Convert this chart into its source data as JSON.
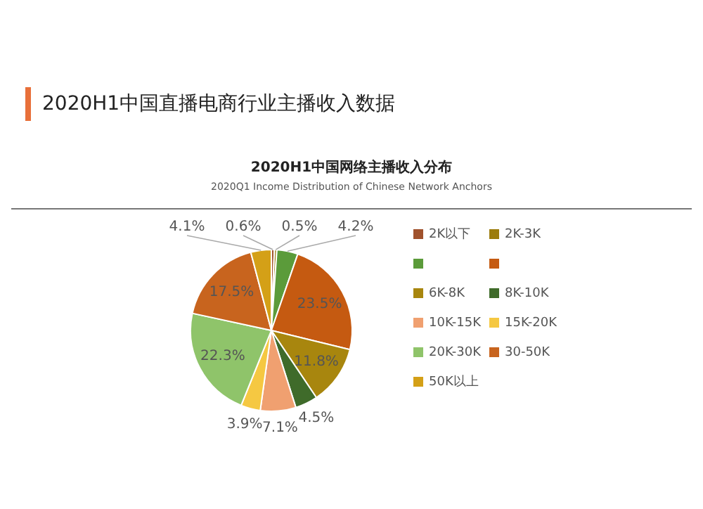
{
  "chart_data": {
    "type": "pie",
    "title": "2020H1中国直播电商行业主播收入数据",
    "subtitle": "2020H1中国网络主播收入分布",
    "annotations": [
      "2020Q1 Income Distribution of Chinese Network Anchors"
    ],
    "categories": [
      "2K以下",
      "2K-3K",
      null,
      null,
      "6K-8K",
      "8K-10K",
      "10K-15K",
      "15K-20K",
      "20K-30K",
      "30-50K",
      "50K以上"
    ],
    "values": [
      0.6,
      0.5,
      4.2,
      23.5,
      11.8,
      4.5,
      7.1,
      3.9,
      22.3,
      17.5,
      4.1
    ],
    "colors": [
      "#a0522d",
      "#9c7c0c",
      "#5b9b3a",
      "#c55a11",
      "#a8860e",
      "#3f6b2a",
      "#f0a070",
      "#f5c842",
      "#8fc46a",
      "#c8641e",
      "#d4a017"
    ],
    "value_labels": [
      "0.6%",
      "0.5%",
      "4.2%",
      "23.5%",
      "11.8%",
      "4.5%",
      "7.1%",
      "3.9%",
      "22.3%",
      "17.5%",
      "4.1%"
    ],
    "legend": "right"
  }
}
